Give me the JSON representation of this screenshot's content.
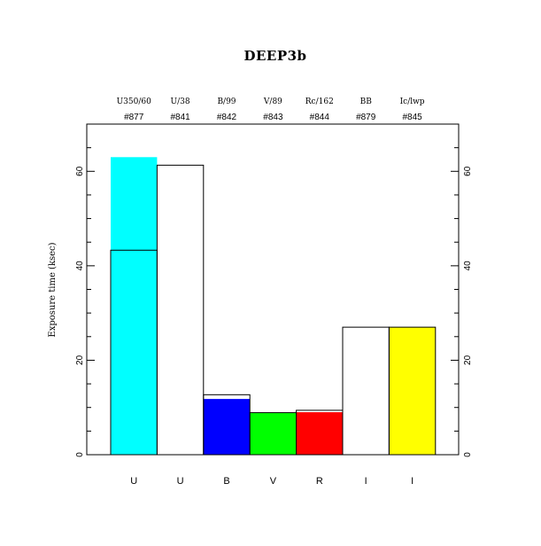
{
  "chart_data": {
    "type": "bar",
    "title": "DEEP3b",
    "ylabel": "Exposure time (ksec)",
    "xlabel": "",
    "ylim": [
      0,
      70
    ],
    "yticks": [
      0,
      20,
      40,
      60
    ],
    "grid": false,
    "categories": [
      "U",
      "U",
      "B",
      "V",
      "R",
      "I",
      "I"
    ],
    "filters": [
      "U350/60",
      "U/38",
      "B/99",
      "V/89",
      "Rc/162",
      "BB",
      "Ic/lwp"
    ],
    "filter_ids": [
      "#877",
      "#841",
      "#842",
      "#843",
      "#844",
      "#879",
      "#845"
    ],
    "bar_colors": [
      "#00ffff",
      "#ffffff",
      "#0000ff",
      "#00ff00",
      "#ff0000",
      "#ffffff",
      "#ffff00"
    ],
    "series": [
      {
        "values": [
          63,
          0,
          11.8,
          8.9,
          9.0,
          0,
          27
        ]
      },
      {
        "values": [
          43.3,
          61.3,
          12.7,
          8.9,
          9.4,
          27,
          27
        ]
      }
    ]
  }
}
